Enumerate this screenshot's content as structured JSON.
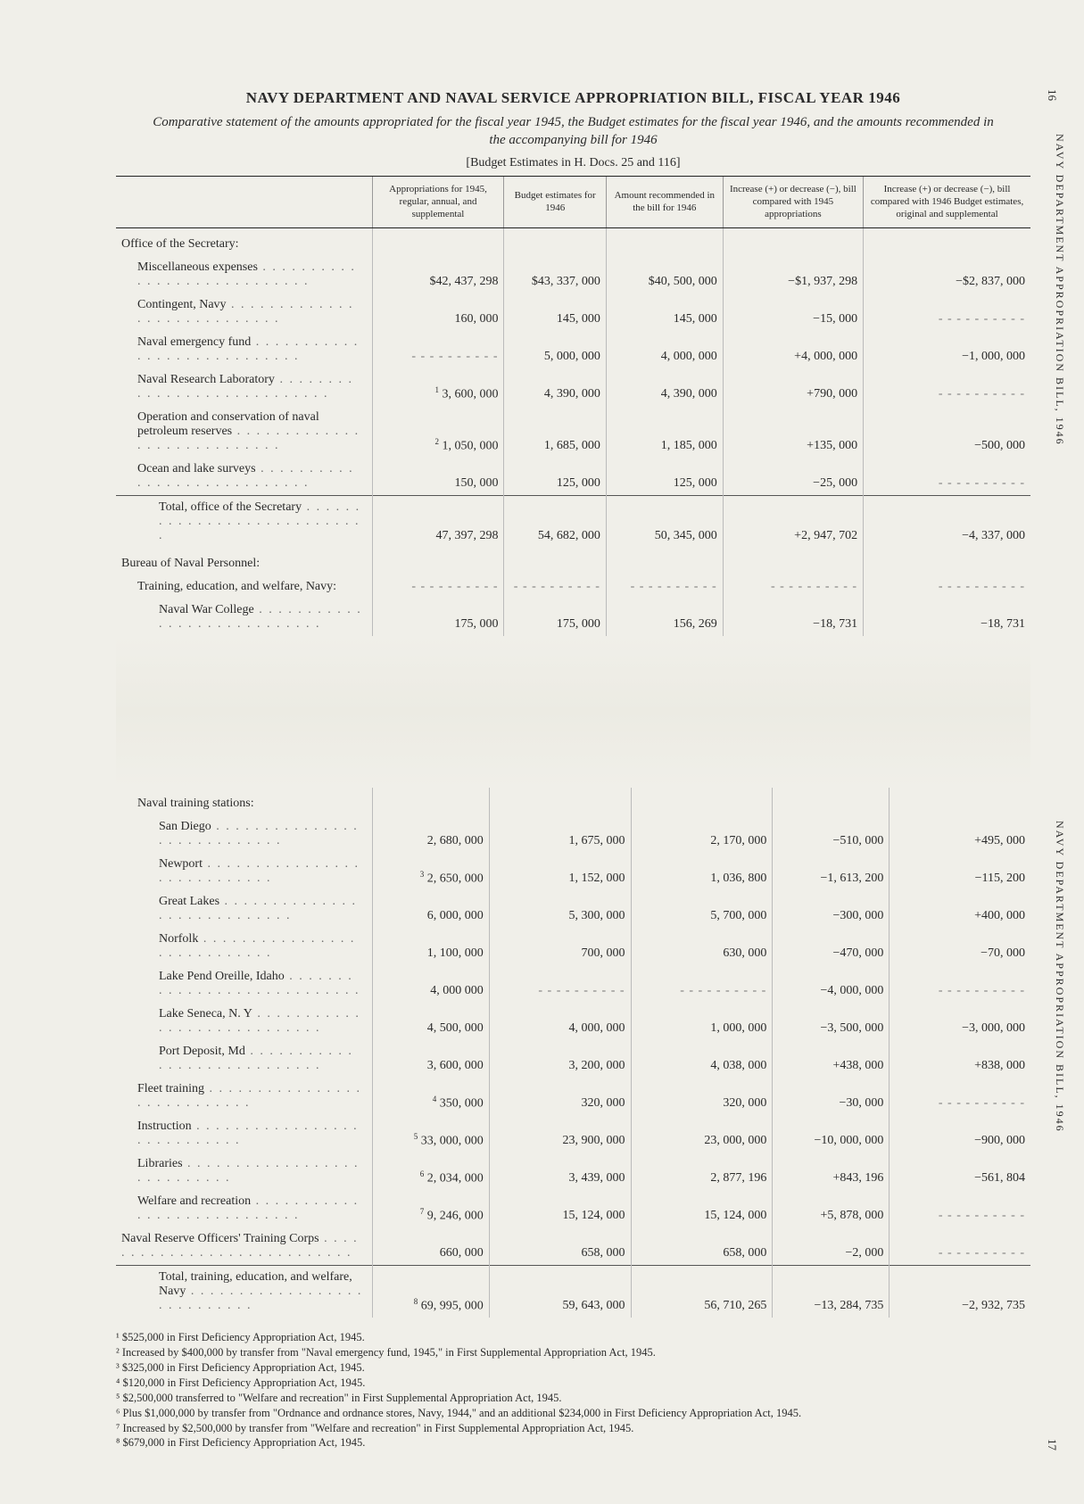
{
  "title": "NAVY DEPARTMENT AND NAVAL SERVICE APPROPRIATION BILL, FISCAL YEAR 1946",
  "subtitle": "Comparative statement of the amounts appropriated for the fiscal year 1945, the Budget estimates for the fiscal year 1946, and the amounts recommended in the accompanying bill for 1946",
  "docref": "[Budget Estimates in H. Docs. 25 and 116]",
  "side_top": "NAVY DEPARTMENT APPROPRIATION BILL, 1946",
  "side_bot": "NAVY DEPARTMENT APPROPRIATION BILL, 1946",
  "page_top": "16",
  "page_bot": "17",
  "columns": [
    "",
    "Appropriations for 1945, regular, annual, and supplemental",
    "Budget estimates for 1946",
    "Amount recommended in the bill for 1946",
    "Increase (+) or decrease (−), bill compared with 1945 appropriations",
    "Increase (+) or decrease (−), bill compared with 1946 Budget estimates, original and supplemental"
  ],
  "sections": [
    {
      "heading": "Office of the Secretary:",
      "rows": [
        {
          "label": "Miscellaneous expenses",
          "indent": 1,
          "c": [
            "$42, 437, 298",
            "$43, 337, 000",
            "$40, 500, 000",
            "−$1, 937, 298",
            "−$2, 837, 000"
          ]
        },
        {
          "label": "Contingent, Navy",
          "indent": 1,
          "c": [
            "160, 000",
            "145, 000",
            "145, 000",
            "−15, 000",
            ""
          ]
        },
        {
          "label": "Naval emergency fund",
          "indent": 1,
          "c": [
            "",
            "5, 000, 000",
            "4, 000, 000",
            "+4, 000, 000",
            "−1, 000, 000"
          ]
        },
        {
          "label": "Naval Research Laboratory",
          "indent": 1,
          "fn": "1",
          "c": [
            "3, 600, 000",
            "4, 390, 000",
            "4, 390, 000",
            "+790, 000",
            ""
          ]
        },
        {
          "label": "Operation and conservation of naval petroleum reserves",
          "indent": 1,
          "fn": "2",
          "c": [
            "1, 050, 000",
            "1, 685, 000",
            "1, 185, 000",
            "+135, 000",
            "−500, 000"
          ]
        },
        {
          "label": "Ocean and lake surveys",
          "indent": 1,
          "c": [
            "150, 000",
            "125, 000",
            "125, 000",
            "−25, 000",
            ""
          ]
        },
        {
          "label": "Total, office of the Secretary",
          "indent": 2,
          "ruled": true,
          "c": [
            "47, 397, 298",
            "54, 682, 000",
            "50, 345, 000",
            "+2, 947, 702",
            "−4, 337, 000"
          ]
        }
      ]
    },
    {
      "heading": "Bureau of Naval Personnel:",
      "rows": [
        {
          "label": "Training, education, and welfare, Navy:",
          "indent": 1,
          "c": [
            "",
            "",
            "",
            "",
            ""
          ]
        },
        {
          "label": "Naval War College",
          "indent": 2,
          "c": [
            "175, 000",
            "175, 000",
            "156, 269",
            "−18, 731",
            "−18, 731"
          ]
        }
      ]
    }
  ],
  "sections2": [
    {
      "heading": "Naval training stations:",
      "indent": 1,
      "rows": [
        {
          "label": "San Diego",
          "indent": 2,
          "c": [
            "2, 680, 000",
            "1, 675, 000",
            "2, 170, 000",
            "−510, 000",
            "+495, 000"
          ]
        },
        {
          "label": "Newport",
          "indent": 2,
          "fn": "3",
          "c": [
            "2, 650, 000",
            "1, 152, 000",
            "1, 036, 800",
            "−1, 613, 200",
            "−115, 200"
          ]
        },
        {
          "label": "Great Lakes",
          "indent": 2,
          "c": [
            "6, 000, 000",
            "5, 300, 000",
            "5, 700, 000",
            "−300, 000",
            "+400, 000"
          ]
        },
        {
          "label": "Norfolk",
          "indent": 2,
          "c": [
            "1, 100, 000",
            "700, 000",
            "630, 000",
            "−470, 000",
            "−70, 000"
          ]
        },
        {
          "label": "Lake Pend Oreille, Idaho",
          "indent": 2,
          "c": [
            "4, 000  000",
            "",
            "",
            "−4, 000, 000",
            ""
          ]
        },
        {
          "label": "Lake Seneca, N. Y",
          "indent": 2,
          "c": [
            "4, 500, 000",
            "4, 000, 000",
            "1, 000, 000",
            "−3, 500, 000",
            "−3, 000, 000"
          ]
        },
        {
          "label": "Port Deposit, Md",
          "indent": 2,
          "c": [
            "3, 600, 000",
            "3, 200, 000",
            "4, 038, 000",
            "+438, 000",
            "+838, 000"
          ]
        },
        {
          "label": "Fleet training",
          "indent": 1,
          "fn": "4",
          "c": [
            "350, 000",
            "320, 000",
            "320, 000",
            "−30, 000",
            ""
          ]
        },
        {
          "label": "Instruction",
          "indent": 1,
          "fn": "5",
          "c": [
            "33, 000, 000",
            "23, 900, 000",
            "23, 000, 000",
            "−10, 000, 000",
            "−900, 000"
          ]
        },
        {
          "label": "Libraries",
          "indent": 1,
          "fn": "6",
          "c": [
            "2, 034, 000",
            "3, 439, 000",
            "2, 877, 196",
            "+843, 196",
            "−561, 804"
          ]
        },
        {
          "label": "Welfare and recreation",
          "indent": 1,
          "fn": "7",
          "c": [
            "9, 246, 000",
            "15, 124, 000",
            "15, 124, 000",
            "+5, 878, 000",
            ""
          ]
        },
        {
          "label": "Naval Reserve Officers' Training Corps",
          "indent": 0,
          "c": [
            "660, 000",
            "658, 000",
            "658, 000",
            "−2, 000",
            ""
          ]
        },
        {
          "label": "Total, training, education, and welfare, Navy",
          "indent": 2,
          "fn": "8",
          "ruled": true,
          "c": [
            "69, 995, 000",
            "59, 643, 000",
            "56, 710, 265",
            "−13, 284, 735",
            "−2, 932, 735"
          ]
        }
      ]
    }
  ],
  "footnotes": [
    "¹ $525,000 in First Deficiency Appropriation Act, 1945.",
    "² Increased by $400,000 by transfer from \"Naval emergency fund, 1945,\" in First Supplemental Appropriation Act, 1945.",
    "³ $325,000 in First Deficiency Appropriation Act, 1945.",
    "⁴ $120,000 in First Deficiency Appropriation Act, 1945.",
    "⁵ $2,500,000 transferred to \"Welfare and recreation\" in First Supplemental Appropriation Act, 1945.",
    "⁶ Plus $1,000,000 by transfer from \"Ordnance and ordnance stores, Navy, 1944,\" and an additional $234,000 in First Deficiency Appropriation Act, 1945.",
    "⁷ Increased by $2,500,000 by transfer from \"Welfare and recreation\" in First Supplemental Appropriation Act, 1945.",
    "⁸ $679,000 in First Deficiency Appropriation Act, 1945."
  ]
}
